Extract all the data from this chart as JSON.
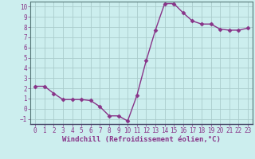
{
  "x": [
    0,
    1,
    2,
    3,
    4,
    5,
    6,
    7,
    8,
    9,
    10,
    11,
    12,
    13,
    14,
    15,
    16,
    17,
    18,
    19,
    20,
    21,
    22,
    23
  ],
  "y": [
    2.2,
    2.2,
    1.5,
    0.9,
    0.9,
    0.9,
    0.8,
    0.2,
    -0.7,
    -0.7,
    -1.2,
    1.3,
    4.7,
    7.7,
    10.3,
    10.3,
    9.4,
    8.6,
    8.3,
    8.3,
    7.8,
    7.7,
    7.7,
    7.9
  ],
  "line_color": "#883388",
  "marker": "D",
  "markersize": 2.5,
  "linewidth": 1.0,
  "bg_color": "#cceeee",
  "grid_color": "#aacccc",
  "xlabel": "Windchill (Refroidissement éolien,°C)",
  "ylabel": "",
  "title": "",
  "xlim": [
    -0.5,
    23.5
  ],
  "ylim": [
    -1.5,
    10.5
  ],
  "xticks": [
    0,
    1,
    2,
    3,
    4,
    5,
    6,
    7,
    8,
    9,
    10,
    11,
    12,
    13,
    14,
    15,
    16,
    17,
    18,
    19,
    20,
    21,
    22,
    23
  ],
  "yticks": [
    -1,
    0,
    1,
    2,
    3,
    4,
    5,
    6,
    7,
    8,
    9,
    10
  ],
  "tick_color": "#883388",
  "tick_fontsize": 5.5,
  "xlabel_fontsize": 6.5,
  "label_color": "#883388"
}
